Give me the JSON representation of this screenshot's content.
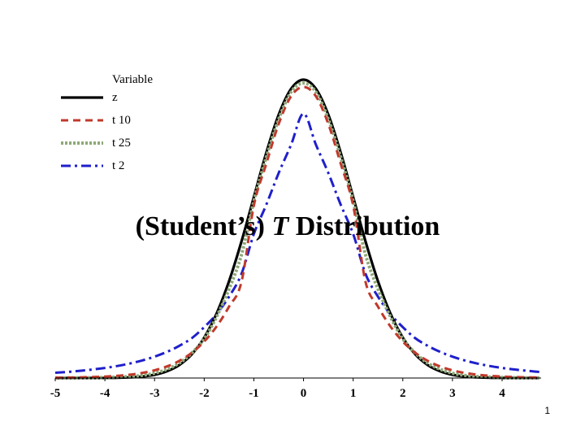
{
  "slide": {
    "title_prefix": "(Student’s) ",
    "title_italic": "T",
    "title_suffix": " Distribution",
    "page_number": "1"
  },
  "chart_data": {
    "type": "line",
    "title": "(Student’s) T Distribution",
    "xlabel": "",
    "ylabel": "",
    "xlim": [
      -5,
      5
    ],
    "ylim": [
      0,
      0.4
    ],
    "x_ticks": [
      "-5",
      "-4",
      "-3",
      "-2",
      "-1",
      "0",
      "1",
      "2",
      "3",
      "4"
    ],
    "legend_title": "Variable",
    "legend_position": "top-left",
    "grid": false,
    "x_step": 0.25,
    "x": [
      -5,
      -4.75,
      -4.5,
      -4.25,
      -4,
      -3.75,
      -3.5,
      -3.25,
      -3,
      -2.75,
      -2.5,
      -2.25,
      -2,
      -1.75,
      -1.5,
      -1.25,
      -1,
      -0.75,
      -0.5,
      -0.25,
      0,
      0.25,
      0.5,
      0.75,
      1,
      1.25,
      1.5,
      1.75,
      2,
      2.25,
      2.5,
      2.75,
      3,
      3.25,
      3.5,
      3.75,
      4,
      4.25,
      4.5,
      4.75
    ],
    "series": [
      {
        "name": "z",
        "color": "#000000",
        "style": "solid",
        "values": [
          0.0,
          0.0,
          0.0,
          0.0,
          0.0001,
          0.0004,
          0.0009,
          0.002,
          0.0044,
          0.0091,
          0.0175,
          0.0317,
          0.054,
          0.0863,
          0.1295,
          0.1826,
          0.242,
          0.3011,
          0.3521,
          0.3867,
          0.3989,
          0.3867,
          0.3521,
          0.3011,
          0.242,
          0.1826,
          0.1295,
          0.0863,
          0.054,
          0.0317,
          0.0175,
          0.0091,
          0.0044,
          0.002,
          0.0009,
          0.0004,
          0.0001,
          0.0,
          0.0,
          0.0
        ]
      },
      {
        "name": "t 10",
        "color": "#c0392b",
        "style": "dashed",
        "values": [
          0.0004,
          0.0006,
          0.0009,
          0.0014,
          0.002,
          0.003,
          0.0045,
          0.0068,
          0.0103,
          0.0155,
          0.023,
          0.0337,
          0.0487,
          0.069,
          0.0955,
          0.1285,
          0.2304,
          0.2863,
          0.3397,
          0.3767,
          0.3891,
          0.3767,
          0.3397,
          0.2863,
          0.2304,
          0.1285,
          0.0955,
          0.069,
          0.0487,
          0.0337,
          0.023,
          0.0155,
          0.0103,
          0.0068,
          0.0045,
          0.003,
          0.002,
          0.0014,
          0.0009,
          0.0006
        ]
      },
      {
        "name": "t 25",
        "color": "#8fa878",
        "style": "dotted",
        "values": [
          0.0001,
          0.0002,
          0.0003,
          0.0005,
          0.0008,
          0.0013,
          0.0021,
          0.0035,
          0.0064,
          0.0117,
          0.02,
          0.0335,
          0.0523,
          0.082,
          0.119,
          0.1648,
          0.2363,
          0.295,
          0.3461,
          0.3825,
          0.3944,
          0.3825,
          0.3461,
          0.295,
          0.2363,
          0.1648,
          0.119,
          0.082,
          0.0523,
          0.0335,
          0.02,
          0.0117,
          0.0064,
          0.0035,
          0.0021,
          0.0013,
          0.0008,
          0.0005,
          0.0003,
          0.0002
        ]
      },
      {
        "name": "t 2",
        "color": "#1f1fcc",
        "style": "dashdot",
        "values": [
          0.0071,
          0.0082,
          0.0097,
          0.0114,
          0.0135,
          0.0161,
          0.0194,
          0.0235,
          0.0286,
          0.035,
          0.0431,
          0.0533,
          0.068,
          0.0855,
          0.1088,
          0.1392,
          0.1925,
          0.2316,
          0.2741,
          0.3121,
          0.3536,
          0.3121,
          0.2741,
          0.2316,
          0.1925,
          0.1392,
          0.1088,
          0.0855,
          0.068,
          0.0533,
          0.0431,
          0.035,
          0.0286,
          0.0235,
          0.0194,
          0.0161,
          0.0135,
          0.0114,
          0.0097,
          0.0082
        ]
      }
    ]
  }
}
